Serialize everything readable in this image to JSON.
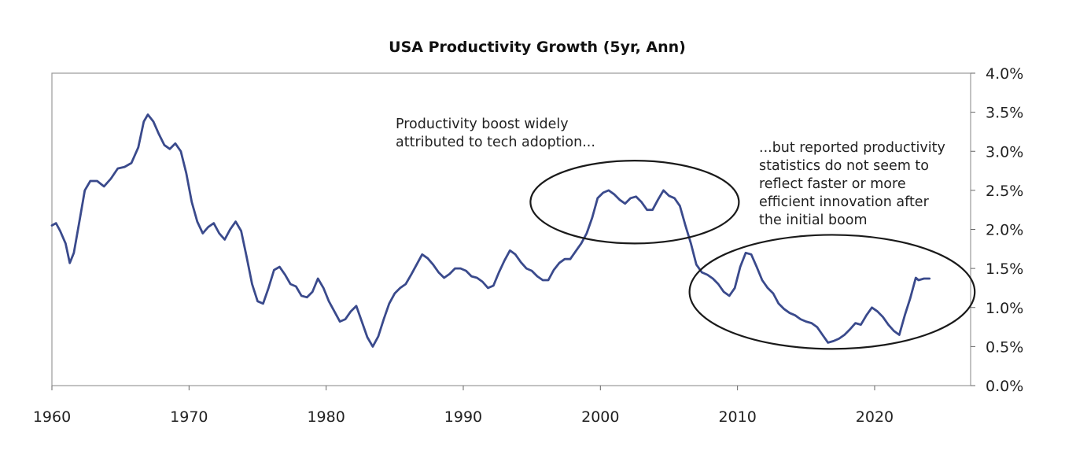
{
  "chart_data": {
    "type": "line",
    "title": "USA Productivity Growth (5yr, Ann)",
    "xlabel": "",
    "ylabel": "",
    "xlim": [
      1960,
      2027
    ],
    "ylim": [
      0,
      4.0
    ],
    "x_ticks": [
      "1960",
      "1970",
      "1980",
      "1990",
      "2000",
      "2010",
      "2020"
    ],
    "y_ticks": [
      "0.0%",
      "0.5%",
      "1.0%",
      "1.5%",
      "2.0%",
      "2.5%",
      "3.0%",
      "3.5%",
      "4.0%"
    ],
    "y_axis_side": "right",
    "grid": false,
    "series": [
      {
        "name": "",
        "color": "#3a4a8c",
        "x": [
          1960.0,
          1960.3,
          1960.6,
          1961.0,
          1961.3,
          1961.6,
          1962.0,
          1962.4,
          1962.8,
          1963.3,
          1963.8,
          1964.3,
          1964.8,
          1965.3,
          1965.8,
          1966.3,
          1966.7,
          1967.0,
          1967.4,
          1967.8,
          1968.2,
          1968.6,
          1969.0,
          1969.4,
          1969.8,
          1970.2,
          1970.6,
          1971.0,
          1971.4,
          1971.8,
          1972.2,
          1972.6,
          1973.0,
          1973.4,
          1973.8,
          1974.2,
          1974.6,
          1975.0,
          1975.4,
          1975.8,
          1976.2,
          1976.6,
          1977.0,
          1977.4,
          1977.8,
          1978.2,
          1978.6,
          1979.0,
          1979.4,
          1979.8,
          1980.2,
          1980.6,
          1981.0,
          1981.4,
          1981.8,
          1982.2,
          1982.6,
          1983.0,
          1983.4,
          1983.8,
          1984.2,
          1984.6,
          1985.0,
          1985.4,
          1985.8,
          1986.2,
          1986.6,
          1987.0,
          1987.4,
          1987.8,
          1988.2,
          1988.6,
          1989.0,
          1989.4,
          1989.8,
          1990.2,
          1990.6,
          1991.0,
          1991.4,
          1991.8,
          1992.2,
          1992.6,
          1993.0,
          1993.4,
          1993.8,
          1994.2,
          1994.6,
          1995.0,
          1995.4,
          1995.8,
          1996.2,
          1996.6,
          1997.0,
          1997.4,
          1997.8,
          1998.2,
          1998.6,
          1999.0,
          1999.4,
          1999.8,
          2000.2,
          2000.6,
          2001.0,
          2001.4,
          2001.8,
          2002.2,
          2002.6,
          2003.0,
          2003.4,
          2003.8,
          2004.2,
          2004.6,
          2005.0,
          2005.4,
          2005.8,
          2006.2,
          2006.6,
          2007.0,
          2007.4,
          2007.8,
          2008.2,
          2008.6,
          2009.0,
          2009.4,
          2009.8,
          2010.2,
          2010.6,
          2011.0,
          2011.4,
          2011.8,
          2012.2,
          2012.6,
          2013.0,
          2013.4,
          2013.8,
          2014.2,
          2014.6,
          2015.0,
          2015.4,
          2015.8,
          2016.2,
          2016.6,
          2017.0,
          2017.4,
          2017.8,
          2018.2,
          2018.6,
          2019.0,
          2019.4,
          2019.8,
          2020.2,
          2020.6,
          2021.0,
          2021.4,
          2021.8,
          2022.2,
          2022.6,
          2023.0,
          2023.2,
          2023.6,
          2024.0
        ],
        "y": [
          2.05,
          2.08,
          1.98,
          1.82,
          1.57,
          1.7,
          2.1,
          2.5,
          2.62,
          2.62,
          2.55,
          2.65,
          2.78,
          2.8,
          2.85,
          3.05,
          3.38,
          3.47,
          3.38,
          3.22,
          3.08,
          3.03,
          3.1,
          3.0,
          2.72,
          2.35,
          2.1,
          1.95,
          2.03,
          2.08,
          1.95,
          1.87,
          2.0,
          2.1,
          1.98,
          1.65,
          1.3,
          1.08,
          1.05,
          1.25,
          1.48,
          1.52,
          1.42,
          1.3,
          1.27,
          1.15,
          1.13,
          1.2,
          1.37,
          1.25,
          1.08,
          0.95,
          0.82,
          0.85,
          0.95,
          1.02,
          0.82,
          0.62,
          0.5,
          0.63,
          0.85,
          1.05,
          1.18,
          1.25,
          1.3,
          1.42,
          1.55,
          1.68,
          1.63,
          1.55,
          1.45,
          1.38,
          1.43,
          1.5,
          1.5,
          1.47,
          1.4,
          1.38,
          1.33,
          1.25,
          1.28,
          1.45,
          1.6,
          1.73,
          1.68,
          1.58,
          1.5,
          1.47,
          1.4,
          1.35,
          1.35,
          1.48,
          1.57,
          1.62,
          1.62,
          1.72,
          1.82,
          1.95,
          2.15,
          2.4,
          2.47,
          2.5,
          2.45,
          2.38,
          2.33,
          2.4,
          2.42,
          2.35,
          2.25,
          2.25,
          2.38,
          2.5,
          2.43,
          2.4,
          2.3,
          2.05,
          1.82,
          1.55,
          1.45,
          1.42,
          1.37,
          1.3,
          1.2,
          1.15,
          1.25,
          1.52,
          1.7,
          1.68,
          1.52,
          1.35,
          1.25,
          1.18,
          1.05,
          0.98,
          0.93,
          0.9,
          0.85,
          0.82,
          0.8,
          0.75,
          0.65,
          0.55,
          0.57,
          0.6,
          0.65,
          0.72,
          0.8,
          0.78,
          0.9,
          1.0,
          0.95,
          0.88,
          0.78,
          0.7,
          0.65,
          0.9,
          1.12,
          1.38,
          1.35,
          1.37,
          1.37
        ]
      }
    ],
    "annotations": [
      {
        "text_lines": [
          "Productivity boost widely",
          "attributed to tech adoption..."
        ],
        "highlight": {
          "cx": 2002.5,
          "cy": 2.35,
          "rx": 7.6,
          "ry": 0.53
        }
      },
      {
        "text_lines": [
          "...but reported productivity",
          "statistics do not seem to",
          "reflect faster or more",
          "efficient innovation after",
          "the initial boom"
        ],
        "highlight": {
          "cx": 2016.9,
          "cy": 1.2,
          "rx": 10.4,
          "ry": 0.73
        }
      }
    ]
  },
  "watermark": {
    "text": ""
  }
}
